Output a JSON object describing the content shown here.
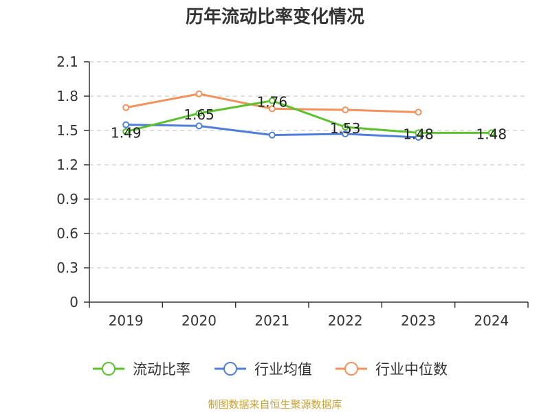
{
  "chart_data": {
    "type": "line",
    "title": "历年流动比率变化情况",
    "categories": [
      "2019",
      "2020",
      "2021",
      "2022",
      "2023",
      "2024"
    ],
    "y_ticks": [
      "0",
      "0.3",
      "0.6",
      "0.9",
      "1.2",
      "1.5",
      "1.8",
      "2.1"
    ],
    "ylim": [
      0,
      2.1
    ],
    "grid": true,
    "legend_position": "bottom",
    "series": [
      {
        "name": "流动比率",
        "color": "#5bc22c",
        "values": [
          1.49,
          1.65,
          1.76,
          1.53,
          1.48,
          1.48
        ],
        "labels": [
          "1.49",
          "1.65",
          "1.76",
          "1.53",
          "1.48",
          "1.48"
        ]
      },
      {
        "name": "行业均值",
        "color": "#4f7fd8",
        "values": [
          1.55,
          1.54,
          1.46,
          1.47,
          1.44,
          null
        ]
      },
      {
        "name": "行业中位数",
        "color": "#f4905a",
        "values": [
          1.7,
          1.82,
          1.69,
          1.68,
          1.66,
          null
        ]
      }
    ]
  },
  "source_text": "制图数据来自恒生聚源数据库"
}
